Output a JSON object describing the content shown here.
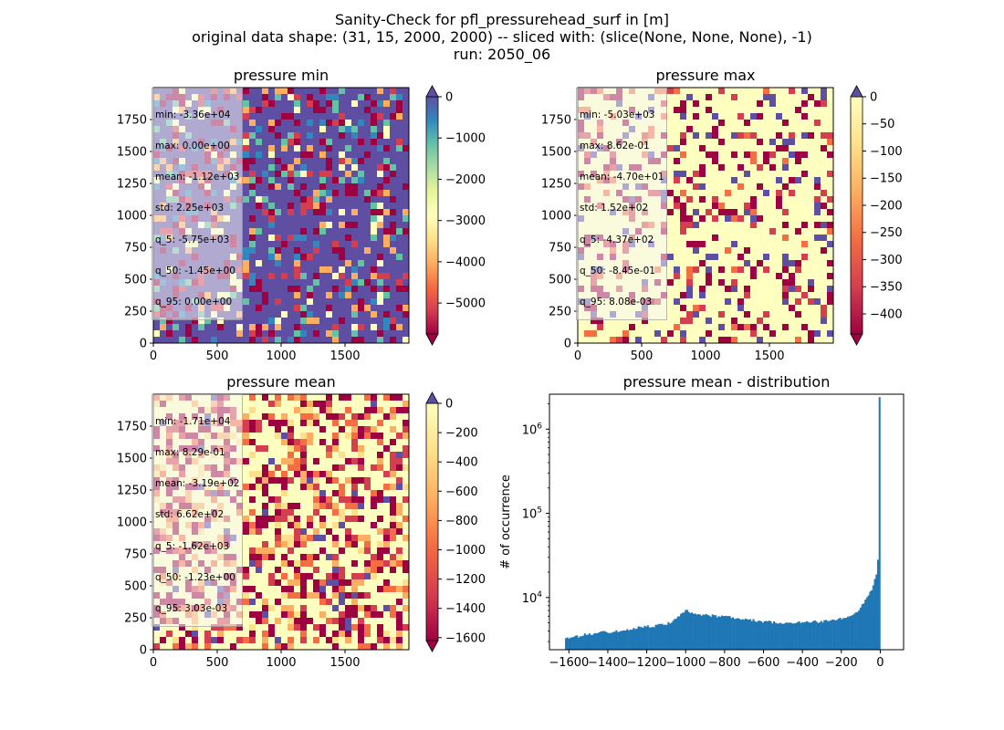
{
  "figure": {
    "title_lines": [
      "Sanity-Check for pfl_pressurehead_surf in [m]",
      "original data shape: (31, 15, 2000, 2000) -- sliced with: (slice(None, None, None), -1)",
      "run: 2050_06"
    ]
  },
  "panels": [
    {
      "title": "pressure min",
      "xticks": [
        "0",
        "500",
        "1000",
        "1500"
      ],
      "yticks": [
        "0",
        "250",
        "500",
        "750",
        "1000",
        "1250",
        "1500",
        "1750"
      ],
      "stats": [
        "min: -3.36e+04",
        "max: 0.00e+00",
        "mean: -1.12e+03",
        "std: 2.25e+03",
        "q_5: -5.75e+03",
        "q_50: -1.45e+00",
        "q_95: 0.00e+00"
      ],
      "colorbar": {
        "ticks": [
          "0",
          "−1000",
          "−2000",
          "−3000",
          "−4000",
          "−5000"
        ],
        "range": [
          -5750,
          0
        ]
      },
      "dominant": "blue"
    },
    {
      "title": "pressure max",
      "xticks": [
        "0",
        "500",
        "1000",
        "1500"
      ],
      "yticks": [
        "0",
        "250",
        "500",
        "750",
        "1000",
        "1250",
        "1500",
        "1750"
      ],
      "stats": [
        "min: -5.03e+03",
        "max: 8.62e-01",
        "mean: -4.70e+01",
        "std: 1.52e+02",
        "q_5: -4.37e+02",
        "q_50: -8.45e-01",
        "q_95: 8.08e-03"
      ],
      "colorbar": {
        "ticks": [
          "0",
          "−50",
          "−100",
          "−150",
          "−200",
          "−250",
          "−300",
          "−350",
          "−400"
        ],
        "range": [
          -437,
          0
        ]
      },
      "dominant": "yellow"
    },
    {
      "title": "pressure mean",
      "xticks": [
        "0",
        "500",
        "1000",
        "1500"
      ],
      "yticks": [
        "0",
        "250",
        "500",
        "750",
        "1000",
        "1250",
        "1500",
        "1750"
      ],
      "stats": [
        "min: -1.71e+04",
        "max: 8.29e-01",
        "mean: -3.19e+02",
        "std: 6.62e+02",
        "q_5: -1.62e+03",
        "q_50: -1.23e+00",
        "q_95: 3.03e-03"
      ],
      "colorbar": {
        "ticks": [
          "0",
          "−200",
          "−400",
          "−600",
          "−800",
          "−1000",
          "−1200",
          "−1400",
          "−1600"
        ],
        "range": [
          -1620,
          0
        ]
      },
      "dominant": "yellow-mixed"
    }
  ],
  "chart_data": [
    {
      "type": "heatmap",
      "title": "pressure min",
      "xlim": [
        0,
        2000
      ],
      "ylim": [
        0,
        2000
      ],
      "colormap": "Spectral",
      "color_range": [
        -5750,
        0
      ]
    },
    {
      "type": "heatmap",
      "title": "pressure max",
      "xlim": [
        0,
        2000
      ],
      "ylim": [
        0,
        2000
      ],
      "colormap": "Spectral",
      "color_range": [
        -437,
        0
      ]
    },
    {
      "type": "heatmap",
      "title": "pressure mean",
      "xlim": [
        0,
        2000
      ],
      "ylim": [
        0,
        2000
      ],
      "colormap": "Spectral",
      "color_range": [
        -1620,
        0
      ]
    },
    {
      "type": "bar",
      "title": "pressure mean - distribution",
      "ylabel": "# of occurrence",
      "xlabel": "",
      "yscale": "log",
      "xlim": [
        -1700,
        120
      ],
      "ylim": [
        2400,
        2600000
      ],
      "xticks": [
        "−1600",
        "−1400",
        "−1200",
        "−1000",
        "−800",
        "−600",
        "−400",
        "−200",
        "0"
      ],
      "yticks": [
        "10^4",
        "10^5",
        "10^6"
      ],
      "color": "#1f77b4",
      "bin_range": [
        -1620,
        0
      ],
      "series": [
        {
          "anchors_x": [
            -1620,
            -1500,
            -1400,
            -1300,
            -1200,
            -1100,
            -1050,
            -1000,
            -950,
            -900,
            -800,
            -700,
            -600,
            -500,
            -400,
            -300,
            -250,
            -200,
            -150,
            -120,
            -100,
            -80,
            -60,
            -40,
            -30,
            -20,
            -15,
            -10,
            -5,
            -3
          ],
          "anchors_y": [
            3200,
            3700,
            3900,
            4200,
            4500,
            4800,
            5600,
            7000,
            6500,
            6200,
            5900,
            5500,
            5200,
            5000,
            5100,
            5200,
            5300,
            5600,
            6200,
            6800,
            7600,
            9000,
            10500,
            13000,
            15500,
            19000,
            24000,
            30000,
            40000,
            2400000
          ]
        }
      ]
    }
  ]
}
